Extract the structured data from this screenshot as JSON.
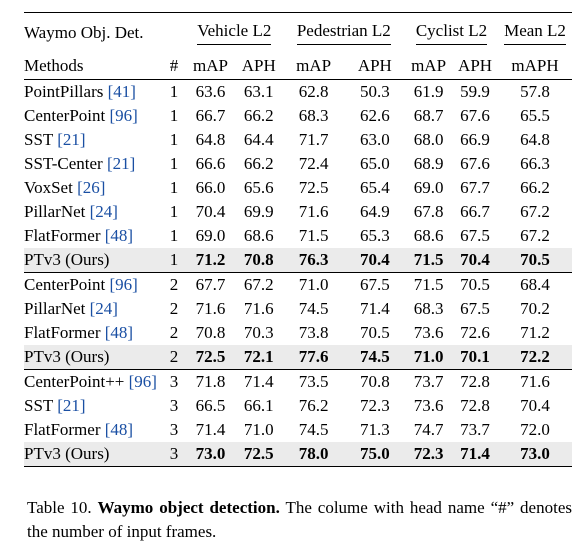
{
  "header": {
    "corner": "Waymo Obj. Det.",
    "groups": [
      "Vehicle L2",
      "Pedestrian L2",
      "Cyclist L2",
      "Mean L2"
    ],
    "methods_label": "Methods",
    "frames_label": "#",
    "metrics": [
      "mAP",
      "APH",
      "mAP",
      "APH",
      "mAP",
      "APH",
      "mAPH"
    ]
  },
  "sections": [
    {
      "rows": [
        {
          "name": "PointPillars ",
          "cite": "[41]",
          "frames": "1",
          "values": [
            "63.6",
            "63.1",
            "62.8",
            "50.3",
            "61.9",
            "59.9",
            "57.8"
          ]
        },
        {
          "name": "CenterPoint ",
          "cite": "[96]",
          "frames": "1",
          "values": [
            "66.7",
            "66.2",
            "68.3",
            "62.6",
            "68.7",
            "67.6",
            "65.5"
          ]
        },
        {
          "name": "SST ",
          "cite": "[21]",
          "frames": "1",
          "values": [
            "64.8",
            "64.4",
            "71.7",
            "63.0",
            "68.0",
            "66.9",
            "64.8"
          ]
        },
        {
          "name": "SST-Center ",
          "cite": "[21]",
          "frames": "1",
          "values": [
            "66.6",
            "66.2",
            "72.4",
            "65.0",
            "68.9",
            "67.6",
            "66.3"
          ]
        },
        {
          "name": "VoxSet ",
          "cite": "[26]",
          "frames": "1",
          "values": [
            "66.0",
            "65.6",
            "72.5",
            "65.4",
            "69.0",
            "67.7",
            "66.2"
          ]
        },
        {
          "name": "PillarNet ",
          "cite": "[24]",
          "frames": "1",
          "values": [
            "70.4",
            "69.9",
            "71.6",
            "64.9",
            "67.8",
            "66.7",
            "67.2"
          ]
        },
        {
          "name": "FlatFormer ",
          "cite": "[48]",
          "frames": "1",
          "values": [
            "69.0",
            "68.6",
            "71.5",
            "65.3",
            "68.6",
            "67.5",
            "67.2"
          ]
        },
        {
          "name": "PTv3 (Ours)",
          "cite": "",
          "frames": "1",
          "values": [
            "71.2",
            "70.8",
            "76.3",
            "70.4",
            "71.5",
            "70.4",
            "70.5"
          ],
          "ours": true
        }
      ]
    },
    {
      "rows": [
        {
          "name": "CenterPoint ",
          "cite": "[96]",
          "frames": "2",
          "values": [
            "67.7",
            "67.2",
            "71.0",
            "67.5",
            "71.5",
            "70.5",
            "68.4"
          ]
        },
        {
          "name": "PillarNet ",
          "cite": "[24]",
          "frames": "2",
          "values": [
            "71.6",
            "71.6",
            "74.5",
            "71.4",
            "68.3",
            "67.5",
            "70.2"
          ]
        },
        {
          "name": "FlatFormer ",
          "cite": "[48]",
          "frames": "2",
          "values": [
            "70.8",
            "70.3",
            "73.8",
            "70.5",
            "73.6",
            "72.6",
            "71.2"
          ]
        },
        {
          "name": "PTv3 (Ours)",
          "cite": "",
          "frames": "2",
          "values": [
            "72.5",
            "72.1",
            "77.6",
            "74.5",
            "71.0",
            "70.1",
            "72.2"
          ],
          "ours": true
        }
      ]
    },
    {
      "rows": [
        {
          "name": "CenterPoint++ ",
          "cite": "[96]",
          "frames": "3",
          "values": [
            "71.8",
            "71.4",
            "73.5",
            "70.8",
            "73.7",
            "72.8",
            "71.6"
          ]
        },
        {
          "name": "SST ",
          "cite": "[21]",
          "frames": "3",
          "values": [
            "66.5",
            "66.1",
            "76.2",
            "72.3",
            "73.6",
            "72.8",
            "70.4"
          ]
        },
        {
          "name": "FlatFormer ",
          "cite": "[48]",
          "frames": "3",
          "values": [
            "71.4",
            "71.0",
            "74.5",
            "71.3",
            "74.7",
            "73.7",
            "72.0"
          ]
        },
        {
          "name": "PTv3 (Ours)",
          "cite": "",
          "frames": "3",
          "values": [
            "73.0",
            "72.5",
            "78.0",
            "75.0",
            "72.3",
            "71.4",
            "73.0"
          ],
          "ours": true
        }
      ]
    }
  ],
  "caption": {
    "label": "Table 10.",
    "title": "Waymo object detection.",
    "text": "The colume with head name “#” denotes the number of input frames."
  }
}
